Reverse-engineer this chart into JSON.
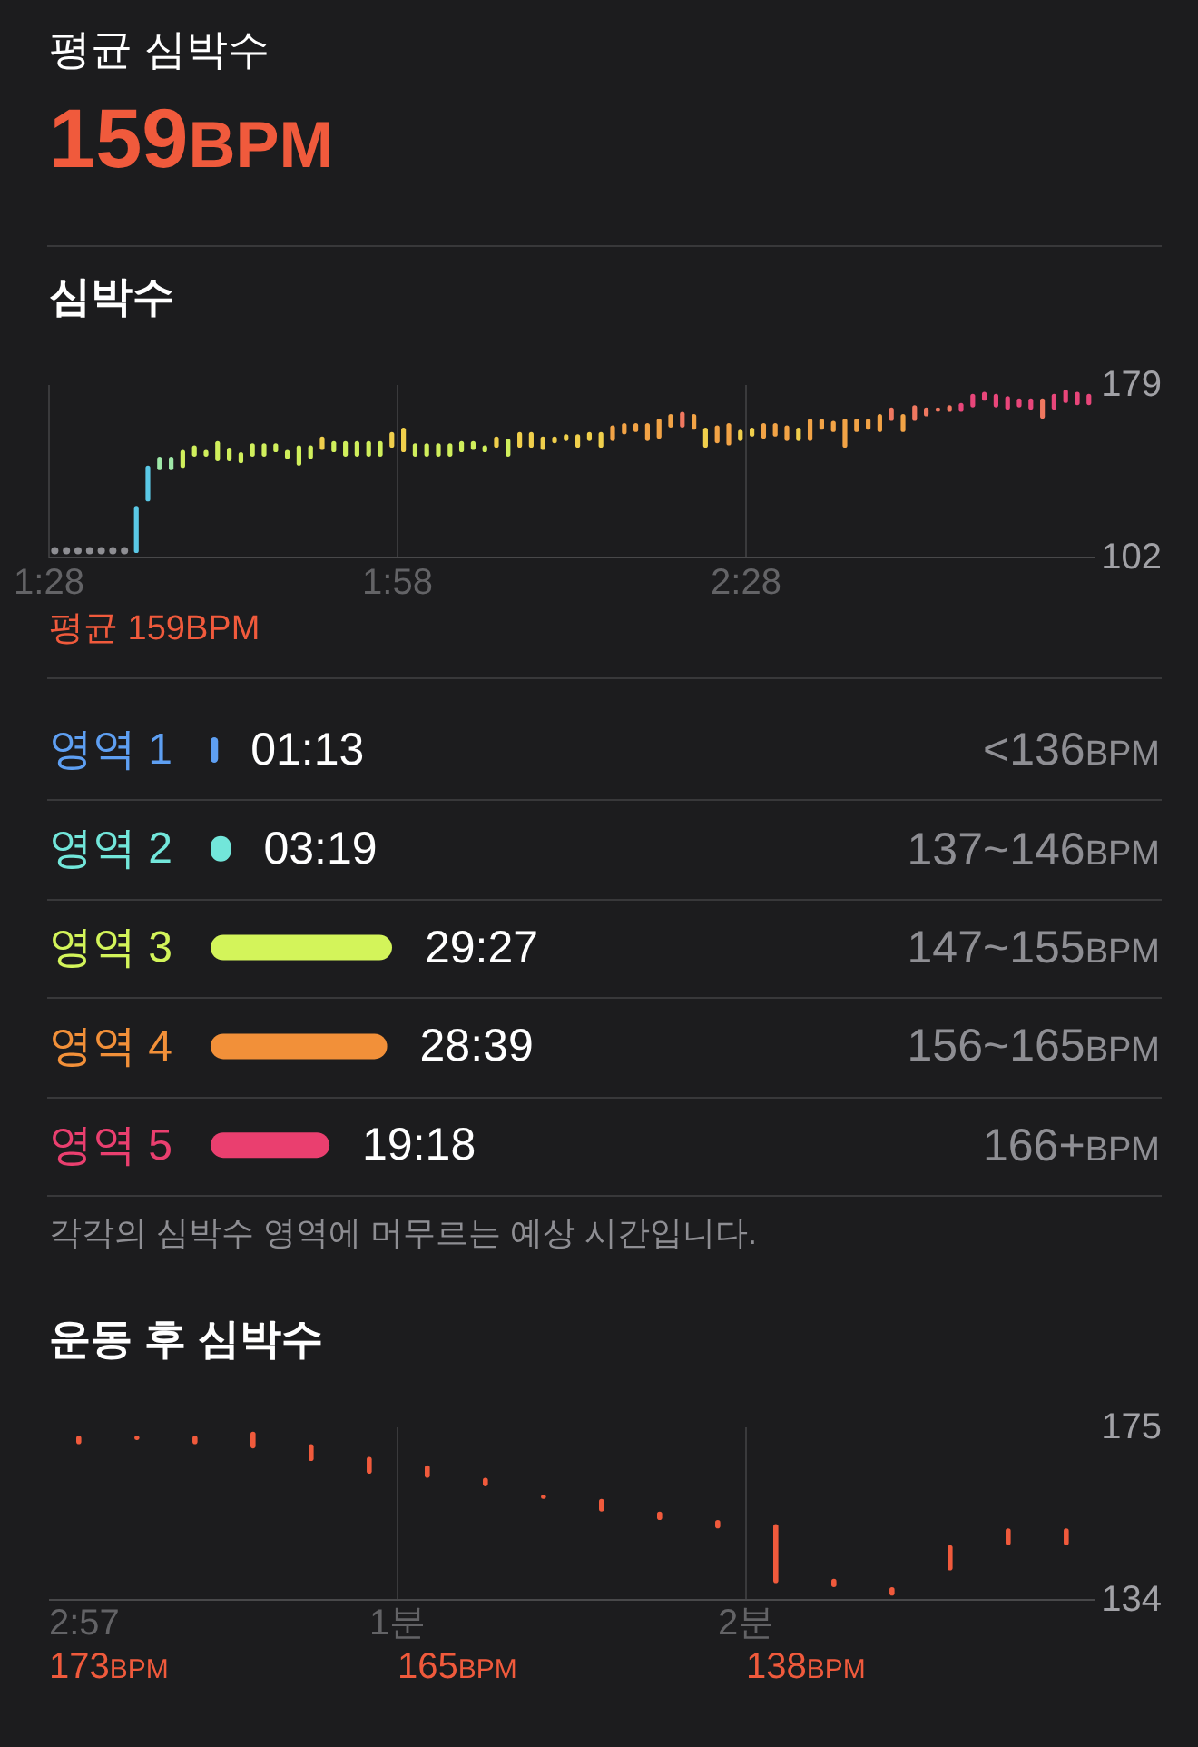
{
  "chart_data": [
    {
      "type": "other",
      "title": "평균 심박수",
      "annotations": [
        "159BPM"
      ]
    },
    {
      "type": "bar",
      "title": "심박수",
      "x": [
        1.5917,
        1.6083,
        1.625,
        1.6417,
        1.6583,
        1.675,
        1.6917,
        1.7083,
        1.725,
        1.7417,
        1.7583,
        1.775,
        1.7917,
        1.8083,
        1.825,
        1.8417,
        1.8583,
        1.875,
        1.8917,
        1.9083,
        1.925,
        1.9417,
        1.9583,
        1.975,
        1.9917,
        2.0083,
        2.025,
        2.0417,
        2.0583,
        2.075,
        2.0917,
        2.1083,
        2.125,
        2.1417,
        2.1583,
        2.175,
        2.1917,
        2.2083,
        2.225,
        2.2417,
        2.2583,
        2.275,
        2.2917,
        2.3083,
        2.325,
        2.3417,
        2.3583,
        2.375,
        2.3917,
        2.4083,
        2.425,
        2.4417,
        2.4583,
        2.475,
        2.4917,
        2.5083,
        2.525,
        2.5417,
        2.5583,
        2.575,
        2.5917,
        2.6083,
        2.625,
        2.6417,
        2.6583,
        2.675,
        2.6917,
        2.7083,
        2.725,
        2.7417,
        2.7583,
        2.775,
        2.7917,
        2.8083,
        2.825,
        2.8417,
        2.8583,
        2.875,
        2.8917,
        2.9083,
        2.925,
        2.9417,
        2.9583
      ],
      "series": [
        {
          "values": [
            21,
            16,
            6,
            6,
            8,
            5,
            3,
            9,
            6,
            5,
            6,
            6,
            4,
            4,
            9,
            6,
            6,
            5,
            7,
            7,
            7,
            7,
            7,
            11,
            6,
            6,
            6,
            6,
            5,
            4,
            3,
            5,
            8,
            7,
            7,
            6,
            3,
            3,
            6,
            4,
            7,
            7,
            5,
            4,
            8,
            9,
            6,
            7,
            7,
            9,
            8,
            10,
            5,
            4,
            7,
            6,
            7,
            6,
            10,
            5,
            5,
            13,
            6,
            5,
            8,
            6,
            8,
            7,
            4,
            2,
            3,
            4,
            6,
            4,
            6,
            6,
            4,
            5,
            9,
            7,
            6,
            6,
            5
          ],
          "base": [
            104,
            127,
            141,
            141,
            142,
            147,
            147,
            145,
            145,
            144,
            147,
            147,
            149,
            146,
            143,
            146,
            150,
            149,
            147,
            147,
            147,
            147,
            151,
            149,
            147,
            147,
            147,
            147,
            149,
            150,
            149,
            151,
            147,
            151,
            151,
            150,
            153,
            154,
            151,
            154,
            151,
            154,
            157,
            158,
            154,
            155,
            160,
            160,
            159,
            151,
            153,
            152,
            154,
            156,
            155,
            156,
            154,
            154,
            154,
            159,
            158,
            151,
            158,
            159,
            158,
            163,
            158,
            163,
            165,
            167,
            167,
            167,
            169,
            172,
            169,
            168,
            169,
            168,
            164,
            168,
            171,
            170,
            170
          ],
          "colors": [
            "#5ac8e6",
            "#5ac8e6",
            "#9ee8a8",
            "#9ee8a8",
            "#d0ef5c",
            "#d0ef5c",
            "#d0ef5c",
            "#d0ef5c",
            "#d0ef5c",
            "#d0ef5c",
            "#d0ef5c",
            "#d0ef5c",
            "#d0ef5c",
            "#d0ef5c",
            "#d0ef5c",
            "#d0ef5c",
            "#f0cf4c",
            "#d0ef5c",
            "#d0ef5c",
            "#d0ef5c",
            "#d0ef5c",
            "#d0ef5c",
            "#f0cf4c",
            "#f0cf4c",
            "#d0ef5c",
            "#d0ef5c",
            "#d0ef5c",
            "#d0ef5c",
            "#d0ef5c",
            "#d0ef5c",
            "#d0ef5c",
            "#f0cf4c",
            "#d0ef5c",
            "#f0cf4c",
            "#f0cf4c",
            "#f0cf4c",
            "#f0cf4c",
            "#f0cf4c",
            "#f0cf4c",
            "#f0cf4c",
            "#f0cf4c",
            "#f2a346",
            "#f2a346",
            "#f2a346",
            "#f2a346",
            "#f2a346",
            "#f2a346",
            "#f07860",
            "#f2a346",
            "#f0cf4c",
            "#f2a346",
            "#f2a346",
            "#f0cf4c",
            "#f0cf4c",
            "#f2a346",
            "#f2a346",
            "#f2a346",
            "#f0cf4c",
            "#f2a346",
            "#f2a346",
            "#f2a346",
            "#f2a346",
            "#f2a346",
            "#f2a346",
            "#f2a346",
            "#f07860",
            "#f2a346",
            "#f07860",
            "#f07860",
            "#f07860",
            "#f07860",
            "#e8467a",
            "#e8467a",
            "#e8467a",
            "#e8467a",
            "#e8467a",
            "#e8467a",
            "#e8467a",
            "#f07860",
            "#e8467a",
            "#e8467a",
            "#e8467a",
            "#e8467a"
          ]
        },
        {
          "type": "scatter",
          "x": [
            1.475,
            1.4917,
            1.5083,
            1.525,
            1.5417,
            1.5583,
            1.575
          ],
          "values": [
            105,
            105,
            105,
            105,
            105,
            105,
            105
          ],
          "color": "#8e8e93",
          "marker": "circle"
        }
      ],
      "xlim": [
        1.4667,
        2.9667
      ],
      "xticks": [
        {
          "value": 1.4667,
          "label": "1:28"
        },
        {
          "value": 1.9667,
          "label": "1:58"
        },
        {
          "value": 2.4667,
          "label": "2:28"
        }
      ],
      "ylim": [
        102,
        179
      ],
      "yticks": [
        102,
        179
      ],
      "grid": "x",
      "annotations": [
        "평균 159BPM"
      ]
    },
    {
      "type": "bar",
      "orientation": "horizontal",
      "categories": [
        "영역 1",
        "영역 2",
        "영역 3",
        "영역 4",
        "영역 5"
      ],
      "values": [
        73,
        199,
        1767,
        1719,
        1158
      ],
      "colors": [
        "#5e9ff2",
        "#72e6da",
        "#d3f45a",
        "#f29039",
        "#ea3f6f"
      ],
      "value_labels": [
        "01:13",
        "03:19",
        "29:27",
        "28:39",
        "19:18"
      ],
      "y2_categories": [
        "<136BPM",
        "137~146BPM",
        "147~155BPM",
        "156~165BPM",
        "166+BPM"
      ],
      "annotations": [
        "각각의 심박수 영역에 머무르는 예상 시간입니다."
      ]
    },
    {
      "type": "bar",
      "title": "운동 후 심박수",
      "xlabel": "2:57",
      "x": [
        0.0833,
        0.25,
        0.4167,
        0.5833,
        0.75,
        0.9167,
        1.0833,
        1.25,
        1.4167,
        1.5833,
        1.75,
        1.9167,
        2.0833,
        2.25,
        2.4167,
        2.5833,
        2.75,
        2.9167
      ],
      "values": [
        2,
        1,
        2,
        4,
        4,
        4,
        3,
        2,
        1,
        3,
        2,
        2,
        14,
        2,
        2,
        6,
        4,
        4
      ],
      "base": [
        171,
        172,
        171,
        170,
        167,
        164,
        163,
        161,
        158,
        155,
        153,
        151,
        138,
        137,
        135,
        141,
        147,
        147
      ],
      "color": "#f05a3c",
      "xlim": [
        0,
        3
      ],
      "xticks": [
        {
          "value": 1,
          "label": "1분"
        },
        {
          "value": 2,
          "label": "2분"
        }
      ],
      "ylim": [
        134,
        175
      ],
      "yticks": [
        134,
        175
      ],
      "grid": "x",
      "annotations": [
        "173BPM",
        "165BPM",
        "138BPM"
      ]
    }
  ]
}
